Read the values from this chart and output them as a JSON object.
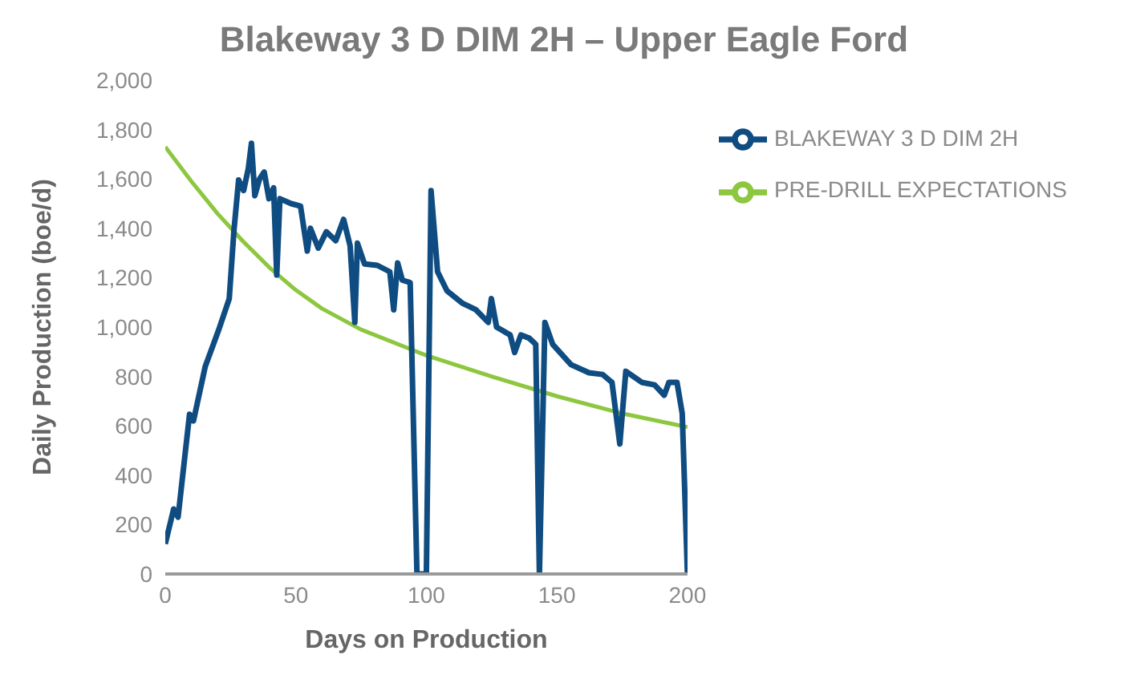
{
  "chart_data": {
    "type": "line",
    "title": "Blakeway 3 D DIM 2H – Upper Eagle Ford",
    "xlabel": "Days on Production",
    "ylabel": "Daily Production (boe/d)",
    "xlim": [
      0,
      200
    ],
    "xticks": [
      0,
      50,
      100,
      150,
      200
    ],
    "ylim": [
      0,
      2000
    ],
    "yticks": [
      {
        "value": 0,
        "label": "0"
      },
      {
        "value": 200,
        "label": "200"
      },
      {
        "value": 400,
        "label": "400"
      },
      {
        "value": 600,
        "label": "600"
      },
      {
        "value": 800,
        "label": "800"
      },
      {
        "value": 1000,
        "label": "1,000"
      },
      {
        "value": 1200,
        "label": "1,200"
      },
      {
        "value": 1400,
        "label": "1,400"
      },
      {
        "value": 1600,
        "label": "1,600"
      },
      {
        "value": 1800,
        "label": "1,800"
      },
      {
        "value": 2000,
        "label": "2,000"
      }
    ],
    "grid": false,
    "legend": "top right",
    "marker": "none",
    "line_style": "solid",
    "series": [
      {
        "name": "PRE-DRILL EXPECTATIONS",
        "color": "#8dc63f",
        "x": [
          0,
          10,
          20,
          30,
          40,
          50,
          60,
          75,
          100,
          125,
          150,
          175,
          200
        ],
        "values": [
          1730,
          1590,
          1460,
          1345,
          1240,
          1150,
          1075,
          990,
          885,
          800,
          720,
          650,
          595
        ]
      },
      {
        "name": "BLAKEWAY 3 D DIM 2H",
        "color": "#0f4c81",
        "x": [
          0,
          3.2,
          4.9,
          9.3,
          10.8,
          15.3,
          20.4,
          24.5,
          26.3,
          28.1,
          30,
          31.8,
          33,
          34.3,
          36.1,
          37.9,
          39.7,
          41.5,
          42.7,
          43.9,
          48.2,
          51.8,
          54.4,
          55.6,
          58.6,
          61.7,
          65.3,
          68.3,
          70.8,
          72.6,
          73.6,
          76.3,
          81.2,
          86,
          87.5,
          89,
          90.8,
          93.8,
          96.4,
          100,
          101.8,
          104.3,
          107.9,
          113.9,
          119,
          123.7,
          124.9,
          126.9,
          132.1,
          133.8,
          136.2,
          139.4,
          141.9,
          143.3,
          145.4,
          148.4,
          155.4,
          162.3,
          167.5,
          171.1,
          174.1,
          176.4,
          182.5,
          187.4,
          191.1,
          192.9,
          196,
          198,
          200
        ],
        "values": [
          122,
          263,
          230,
          647,
          620,
          840,
          987,
          1115,
          1391,
          1596,
          1553,
          1641,
          1744,
          1532,
          1600,
          1628,
          1520,
          1564,
          1211,
          1520,
          1500,
          1490,
          1308,
          1400,
          1320,
          1386,
          1350,
          1436,
          1329,
          1019,
          1340,
          1256,
          1250,
          1224,
          1070,
          1260,
          1190,
          1180,
          0,
          0,
          1553,
          1224,
          1147,
          1096,
          1070,
          1019,
          1115,
          1000,
          968,
          897,
          968,
          955,
          930,
          0,
          1019,
          930,
          848,
          815,
          808,
          776,
          527,
          821,
          776,
          766,
          724,
          776,
          776,
          650,
          0
        ]
      }
    ]
  }
}
